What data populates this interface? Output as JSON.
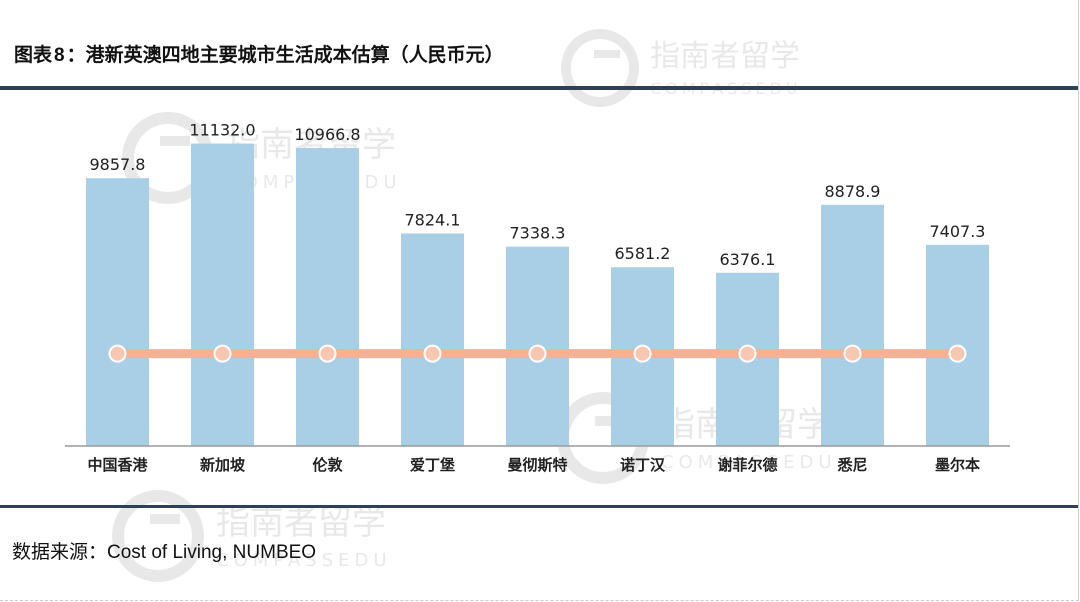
{
  "figure": {
    "label": "图表",
    "number": "8",
    "separator": "：",
    "title": "港新英澳四地主要城市生活成本估算（人民币元）"
  },
  "source": {
    "label": "数据来源：",
    "value": "Cost of Living, NUMBEO"
  },
  "watermark": {
    "text": "指南者留学",
    "subtext": "COMPASSEDU"
  },
  "chart_data": {
    "type": "bar",
    "title": "港新英澳四地主要城市生活成本估算（人民币元）",
    "categories": [
      "中国香港",
      "新加坡",
      "伦敦",
      "爱丁堡",
      "曼彻斯特",
      "诺丁汉",
      "谢菲尔德",
      "悉尼",
      "墨尔本"
    ],
    "values": [
      9857.8,
      11132.0,
      10966.8,
      7824.1,
      7338.3,
      6581.2,
      6376.1,
      8878.9,
      7407.3
    ],
    "value_labels": [
      "9857.8",
      "11132.0",
      "10966.8",
      "7824.1",
      "7338.3",
      "6581.2",
      "6376.1",
      "8878.9",
      "7407.3"
    ],
    "line_values": [
      3400,
      3400,
      3400,
      3400,
      3400,
      3400,
      3400,
      3400,
      3400
    ],
    "ylim": [
      0,
      12000
    ],
    "xlabel": "",
    "ylabel": "",
    "grid": false,
    "legend": "none",
    "colors": {
      "bar": "#a9cfe6",
      "line": "#f3b196",
      "marker_fill": "#f8c7b2",
      "marker_stroke": "#ffffff",
      "axis": "#9a9a9a",
      "label": "#222222"
    }
  }
}
